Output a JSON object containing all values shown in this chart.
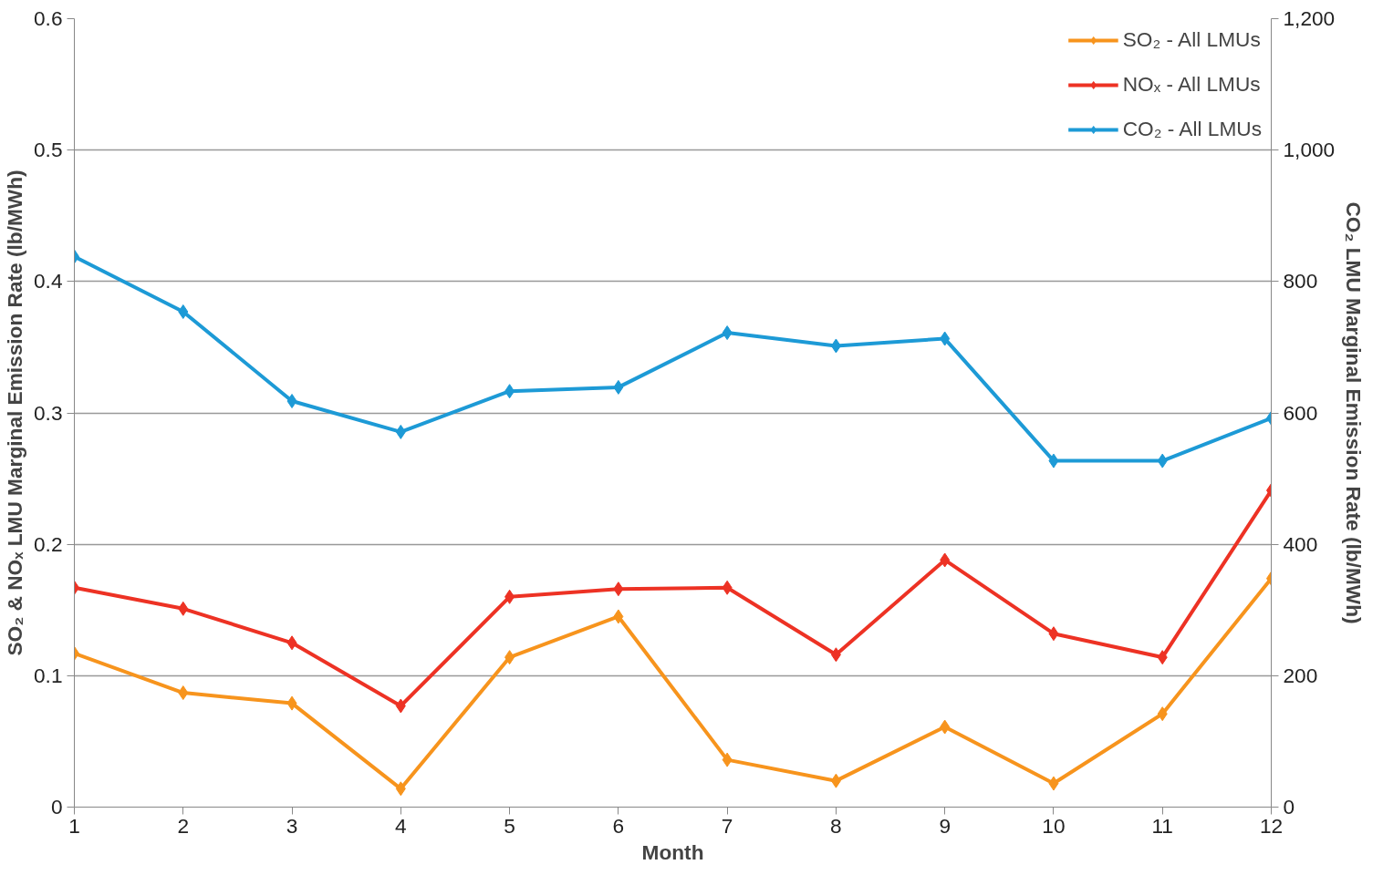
{
  "chart_data": {
    "type": "line",
    "xlabel": "Month",
    "ylabel": "SO₂ & NOₓ LMU Marginal Emission Rate (lb/MWh)",
    "y2label": "CO₂ LMU Marginal Emission Rate (lb/MWh)",
    "x": [
      1,
      2,
      3,
      4,
      5,
      6,
      7,
      8,
      9,
      10,
      11,
      12
    ],
    "xlim": [
      1,
      12
    ],
    "xticks": [
      1,
      2,
      3,
      4,
      5,
      6,
      7,
      8,
      9,
      10,
      11,
      12
    ],
    "ylim": [
      0,
      0.6
    ],
    "yticks": [
      0,
      0.1,
      0.2,
      0.3,
      0.4,
      0.5,
      0.6
    ],
    "y2lim": [
      0,
      1200
    ],
    "y2ticks": [
      0,
      200,
      400,
      600,
      800,
      {
        "value": 1000,
        "label": "1,000"
      },
      {
        "value": 1200,
        "label": "1,200"
      }
    ],
    "grid": "y",
    "legend": "top right",
    "marker": "diamond",
    "line_style": "solid",
    "series": [
      {
        "name": "SO₂ - All LMUs",
        "color": "#f7941d",
        "values": [
          0.117,
          0.087,
          0.079,
          0.014,
          0.114,
          0.145,
          0.036,
          0.02,
          0.061,
          0.018,
          0.071,
          0.174
        ]
      },
      {
        "name": "NOₓ - All LMUs",
        "color": "#ed3224",
        "values": [
          0.167,
          0.151,
          0.125,
          0.077,
          0.16,
          0.166,
          0.167,
          0.116,
          0.188,
          0.132,
          0.114,
          0.241
        ]
      },
      {
        "name": "CO₂ - All LMUs",
        "color": "#1d9ad6",
        "axis": "y2",
        "values": [
          838,
          754,
          618,
          571,
          633,
          639,
          722,
          702,
          713,
          527,
          527,
          592
        ]
      }
    ]
  }
}
